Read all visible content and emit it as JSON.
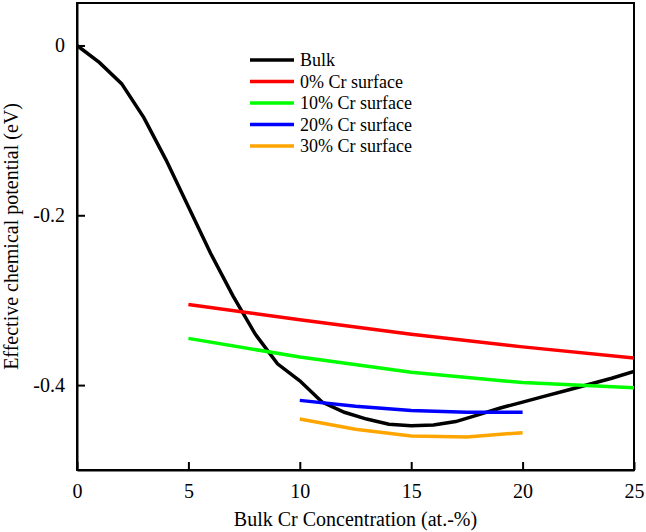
{
  "chart_data": {
    "type": "line",
    "x_label": "Bulk Cr Concentration (at.-%)",
    "y_label": "Effective chemical potential (eV)",
    "xlim": [
      0,
      25
    ],
    "xticks": [
      0,
      5,
      10,
      15,
      20,
      25
    ],
    "ylim": [
      -0.5,
      0.05
    ],
    "yticks": [
      -0.4,
      -0.2,
      0
    ],
    "grid": false,
    "legend": "top",
    "series": [
      {
        "name": "Bulk",
        "color": "#000000",
        "x": [
          0,
          1,
          2,
          3,
          4,
          5,
          6,
          7,
          8,
          9,
          10,
          11,
          12,
          13,
          14,
          15,
          16,
          17,
          18,
          19,
          20,
          21,
          22,
          23,
          24,
          25
        ],
        "values": [
          0,
          -0.02,
          -0.045,
          -0.085,
          -0.135,
          -0.19,
          -0.245,
          -0.295,
          -0.34,
          -0.375,
          -0.395,
          -0.42,
          -0.432,
          -0.44,
          -0.446,
          -0.448,
          -0.447,
          -0.443,
          -0.435,
          -0.427,
          -0.42,
          -0.413,
          -0.406,
          -0.399,
          -0.392,
          -0.384
        ]
      },
      {
        "name": "0% Cr surface",
        "color": "#ff0000",
        "x": [
          5,
          10,
          15,
          20,
          25
        ],
        "values": [
          -0.305,
          -0.323,
          -0.34,
          -0.355,
          -0.368
        ]
      },
      {
        "name": "10% Cr surface",
        "color": "#00ff00",
        "x": [
          5,
          10,
          15,
          20,
          25
        ],
        "values": [
          -0.345,
          -0.367,
          -0.385,
          -0.397,
          -0.403
        ]
      },
      {
        "name": "20% Cr surface",
        "color": "#0000ff",
        "x": [
          10,
          12.5,
          15,
          17.5,
          20
        ],
        "values": [
          -0.418,
          -0.425,
          -0.43,
          -0.432,
          -0.432
        ]
      },
      {
        "name": "30% Cr surface",
        "color": "#ffa500",
        "x": [
          10,
          12.5,
          15,
          17.5,
          20
        ],
        "values": [
          -0.44,
          -0.452,
          -0.46,
          -0.461,
          -0.456
        ]
      }
    ]
  }
}
